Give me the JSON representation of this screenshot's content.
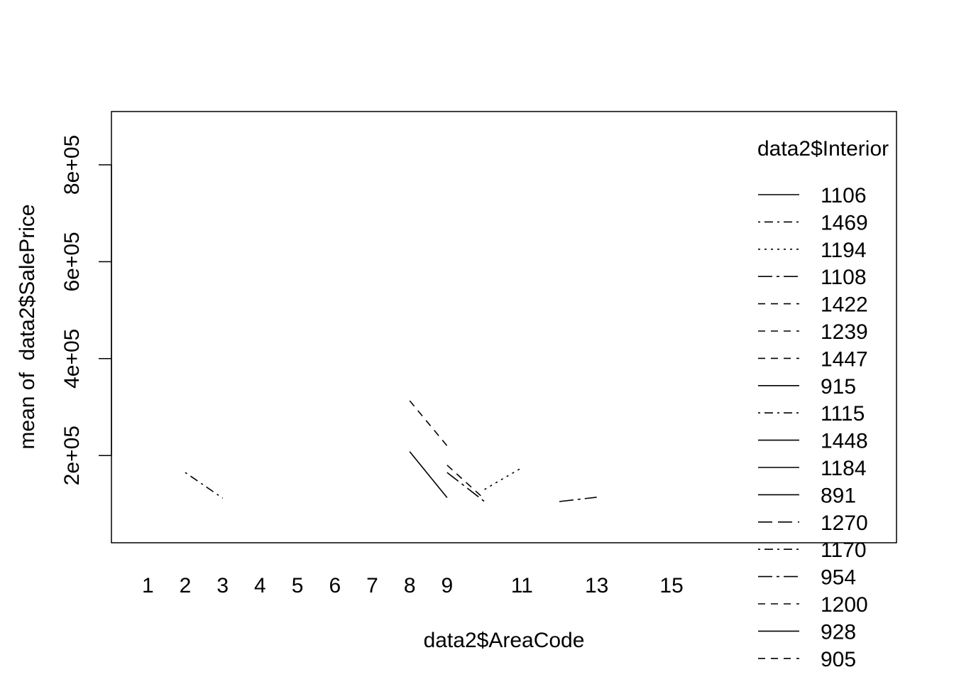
{
  "chart_data": {
    "type": "line",
    "title": "",
    "xlabel": "data2$AreaCode",
    "ylabel": "mean of  data2$SalePrice",
    "x_ticks": [
      "1",
      "2",
      "3",
      "4",
      "5",
      "6",
      "7",
      "8",
      "9",
      "11",
      "13",
      "15"
    ],
    "y_ticks": [
      "2e+05",
      "4e+05",
      "6e+05",
      "8e+05"
    ],
    "ylim": [
      20000,
      910000
    ],
    "grid": false,
    "legend_position": "right",
    "legend": {
      "title": "data2$Interior",
      "entries": [
        {
          "label": "1106",
          "dash": "solid"
        },
        {
          "label": "1469",
          "dash": "dashdot"
        },
        {
          "label": "1194",
          "dash": "dotted"
        },
        {
          "label": "1108",
          "dash": "longdashdot"
        },
        {
          "label": "1422",
          "dash": "dashed"
        },
        {
          "label": "1239",
          "dash": "dashed"
        },
        {
          "label": "1447",
          "dash": "dashed"
        },
        {
          "label": "915",
          "dash": "solid"
        },
        {
          "label": "1115",
          "dash": "dashdot"
        },
        {
          "label": "1448",
          "dash": "solid"
        },
        {
          "label": "1184",
          "dash": "solid"
        },
        {
          "label": "891",
          "dash": "solid"
        },
        {
          "label": "1270",
          "dash": "longdash"
        },
        {
          "label": "1170",
          "dash": "dashdot"
        },
        {
          "label": "954",
          "dash": "longdashdot"
        },
        {
          "label": "1200",
          "dash": "dashed"
        },
        {
          "label": "928",
          "dash": "solid"
        },
        {
          "label": "905",
          "dash": "dashed"
        }
      ]
    },
    "series": [
      {
        "dash": "dashdot",
        "points": [
          [
            2,
            165000
          ],
          [
            3,
            112000
          ]
        ]
      },
      {
        "dash": "solid",
        "points": [
          [
            8,
            208000
          ],
          [
            9,
            113000
          ]
        ]
      },
      {
        "dash": "dashed",
        "points": [
          [
            8,
            313000
          ],
          [
            9,
            220000
          ]
        ]
      },
      {
        "dash": "dashed",
        "points": [
          [
            9,
            180000
          ],
          [
            10,
            110000
          ]
        ]
      },
      {
        "dash": "longdashdot",
        "points": [
          [
            9,
            165000
          ],
          [
            10,
            105000
          ]
        ]
      },
      {
        "dash": "dotted",
        "points": [
          [
            10,
            130000
          ],
          [
            11,
            175000
          ]
        ]
      },
      {
        "dash": "longdashdot",
        "points": [
          [
            12,
            105000
          ],
          [
            13,
            114000
          ]
        ]
      }
    ]
  }
}
